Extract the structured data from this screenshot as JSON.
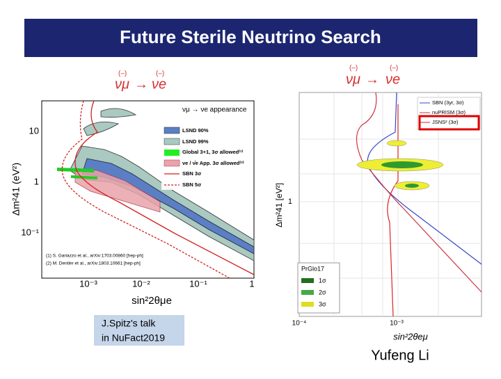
{
  "header": {
    "title": "Future Sterile Neutrino Search"
  },
  "left_figure": {
    "process": [
      "(–)",
      "νμ",
      "→",
      "(–)",
      "νe"
    ],
    "y_label": "Δm²41 (eV²)",
    "x_label": "sin²2θμe",
    "y_ticks": [
      "10",
      "1",
      "10⁻¹"
    ],
    "x_ticks": [
      "10⁻³",
      "10⁻²",
      "10⁻¹",
      "1"
    ],
    "legend_title": "νμ → νe appearance",
    "legend": [
      "LSND 90%",
      "LSND 99%",
      "Global 3+1, 3σ allowed⁽¹⁾",
      "νe / ν̄e App. 3σ allowed⁽²⁾",
      "SBN 3σ",
      "SBN 5σ"
    ],
    "references": [
      "(1) S. Gariazzo et al., arXiv:1703.00860 [hep-ph]",
      "(2) M. Dentler et al., arXiv:1803.10661 [hep-ph]"
    ]
  },
  "right_figure": {
    "process": [
      "(–)",
      "νμ",
      "→",
      "(–)",
      "νe"
    ],
    "y_label": "Δm²41 [eV²]",
    "x_label": "sin²2θeμ",
    "y_ticks": [
      "1"
    ],
    "x_ticks": [
      "10⁻⁴",
      "10⁻³"
    ],
    "legend": [
      "SBN (3yr, 3σ)",
      "nuPRISM (3σ)",
      "JSNS² (3σ)"
    ],
    "fit_legend_title": "PrGlo17",
    "fit_legend": [
      "1σ",
      "2σ",
      "3σ"
    ]
  },
  "note": [
    "J.Spitz's talk",
    "in NuFact2019"
  ],
  "author": "Yufeng Li"
}
